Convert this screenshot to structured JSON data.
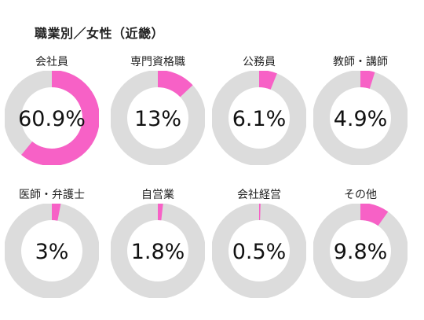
{
  "title": "職業別／女性（近畿）",
  "colors": {
    "accent": "#f761c6",
    "track": "#dcdcdc"
  },
  "chart_data": {
    "type": "donut",
    "title": "職業別／女性（近畿）",
    "unit": "%",
    "max": 100,
    "categories": [
      "会社員",
      "専門資格職",
      "公務員",
      "教師・講師",
      "医師・弁護士",
      "自営業",
      "会社経営",
      "その他"
    ],
    "values": [
      60.9,
      13,
      6.1,
      4.9,
      3,
      1.8,
      0.5,
      9.8
    ],
    "value_labels": [
      "60.9%",
      "13%",
      "6.1%",
      "4.9%",
      "3%",
      "1.8%",
      "0.5%",
      "9.8%"
    ]
  }
}
